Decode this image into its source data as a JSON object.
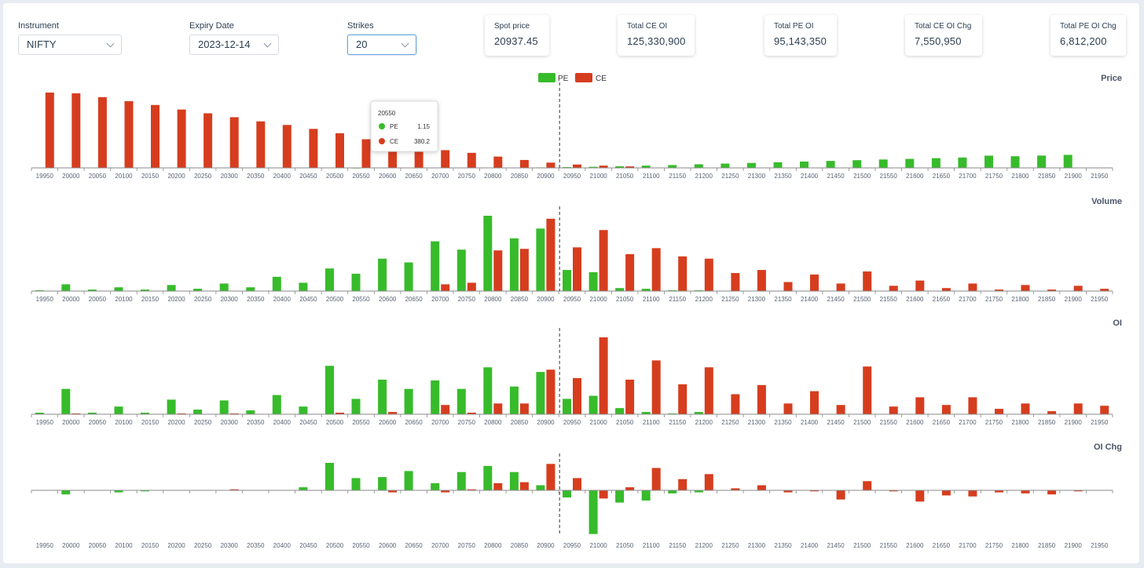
{
  "controls": {
    "instrument": {
      "label": "Instrument",
      "value": "NIFTY"
    },
    "expiry": {
      "label": "Expiry Date",
      "value": "2023-12-14"
    },
    "strikes": {
      "label": "Strikes",
      "value": "20"
    }
  },
  "stats": [
    {
      "label": "Spot price",
      "value": "20937.45"
    },
    {
      "label": "Total CE OI",
      "value": "125,330,900"
    },
    {
      "label": "Total PE OI",
      "value": "95,143,350"
    },
    {
      "label": "Total CE OI Chg",
      "value": "7,550,950"
    },
    {
      "label": "Total PE OI Chg",
      "value": "6,812,200"
    }
  ],
  "colors": {
    "pe": "#37bb2b",
    "ce": "#d63d1e",
    "axis": "#888888",
    "spot_line": "#555555"
  },
  "tooltip": {
    "strike": "20550",
    "pe_label": "PE",
    "pe_value": "1.15",
    "ce_label": "CE",
    "ce_value": "380.2"
  },
  "chart_data": {
    "type": "bar",
    "legend": [
      "PE",
      "CE"
    ],
    "spot_strike": "20950",
    "categories": [
      "19950",
      "20000",
      "20050",
      "20100",
      "20150",
      "20200",
      "20250",
      "20300",
      "20350",
      "20400",
      "20450",
      "20500",
      "20550",
      "20600",
      "20650",
      "20700",
      "20750",
      "20800",
      "20850",
      "20900",
      "20950",
      "21000",
      "21050",
      "21100",
      "21150",
      "21200",
      "21250",
      "21300",
      "21350",
      "21400",
      "21450",
      "21500",
      "21550",
      "21600",
      "21650",
      "21700",
      "21750",
      "21800",
      "21850",
      "21900",
      "21950"
    ],
    "charts": [
      {
        "title": "Price",
        "series": [
          {
            "name": "PE",
            "values": [
              0,
              0,
              0,
              0,
              0,
              0,
              0,
              0,
              0,
              0,
              0,
              0,
              1.15,
              0,
              0,
              0,
              0,
              0,
              3,
              6,
              10,
              15,
              22,
              30,
              38,
              48,
              57,
              66,
              75,
              84,
              93,
              102,
              111,
              120,
              129,
              138,
              162,
              154,
              164,
              173,
              0
            ]
          },
          {
            "name": "CE",
            "values": [
              1000,
              990,
              940,
              885,
              835,
              775,
              725,
              673,
              618,
              570,
              518,
              460,
              380.2,
              370,
              280,
              235,
              200,
              150,
              105,
              70,
              45,
              30,
              20,
              0,
              0,
              0,
              0,
              0,
              0,
              0,
              0,
              0,
              0,
              0,
              0,
              0,
              0,
              0,
              0,
              0,
              0
            ]
          }
        ]
      },
      {
        "title": "Volume",
        "series": [
          {
            "name": "PE",
            "values": [
              1,
              9,
              2,
              5,
              2,
              8,
              3,
              10,
              5,
              19,
              11,
              30,
              23,
              43,
              38,
              66,
              55,
              100,
              70,
              83,
              28,
              25,
              4,
              3,
              1,
              1,
              0,
              0,
              0,
              0,
              0,
              0,
              0,
              0,
              0,
              0,
              0,
              0,
              0,
              0,
              0
            ]
          },
          {
            "name": "CE",
            "values": [
              0,
              0,
              0,
              0,
              0,
              0,
              0,
              0,
              0,
              0,
              0,
              0,
              0,
              0,
              0,
              9,
              11,
              54,
              56,
              96,
              58,
              81,
              49,
              57,
              46,
              43,
              24,
              28,
              12,
              22,
              10,
              26,
              7,
              14,
              4,
              10,
              2,
              8,
              2,
              7,
              3
            ]
          }
        ]
      },
      {
        "title": "OI",
        "series": [
          {
            "name": "PE",
            "values": [
              2,
              33,
              2,
              10,
              2,
              19,
              6,
              18,
              5,
              25,
              10,
              63,
              20,
              45,
              33,
              44,
              33,
              61,
              36,
              55,
              20,
              24,
              8,
              3,
              1,
              3,
              0,
              0,
              0,
              0,
              0,
              0,
              0,
              0,
              0,
              0,
              0,
              0,
              0,
              0,
              0
            ]
          },
          {
            "name": "CE",
            "values": [
              0,
              1,
              0,
              0,
              0,
              1,
              0,
              1,
              0,
              0,
              0,
              2,
              0,
              3,
              0,
              12,
              2,
              14,
              14,
              58,
              47,
              100,
              45,
              70,
              39,
              61,
              26,
              38,
              14,
              30,
              12,
              62,
              10,
              22,
              12,
              22,
              7,
              14,
              4,
              14,
              11
            ]
          }
        ]
      },
      {
        "title": "OI Chg",
        "series": [
          {
            "name": "PE",
            "values": [
              0,
              -4,
              0,
              -2,
              -1,
              0,
              0,
              0,
              0,
              0,
              3,
              27,
              12,
              13,
              19,
              7,
              18,
              24,
              18,
              5,
              -7,
              -43,
              -12,
              -10,
              -3,
              -2,
              0,
              0,
              0,
              0,
              0,
              0,
              0,
              0,
              0,
              0,
              0,
              0,
              0,
              0,
              0
            ]
          },
          {
            "name": "CE",
            "values": [
              0,
              0,
              0,
              0,
              0,
              0,
              0,
              1,
              0,
              0,
              0,
              0,
              0,
              -2,
              0,
              -2,
              1,
              7,
              8,
              26,
              12,
              -8,
              3,
              22,
              11,
              16,
              2,
              5,
              -2,
              -1,
              -9,
              9,
              -1,
              -11,
              -5,
              -6,
              -2,
              -3,
              -4,
              -1,
              0
            ]
          }
        ]
      }
    ]
  }
}
